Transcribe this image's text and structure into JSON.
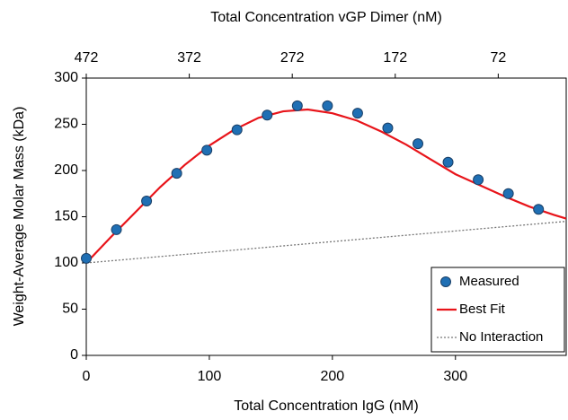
{
  "chart_data": {
    "type": "scatter",
    "x_label": "Total Concentration IgG (nM)",
    "y_label": "Weight-Average Molar Mass (kDa)",
    "x2_label": "Total Concentration vGP Dimer (nM)",
    "xlim": [
      0,
      390
    ],
    "xticks": [
      0,
      100,
      200,
      300
    ],
    "x2lim": [
      472,
      6
    ],
    "x2ticks": [
      472,
      372,
      272,
      172,
      72
    ],
    "ylim": [
      0,
      300
    ],
    "yticks": [
      0,
      50,
      100,
      150,
      200,
      250,
      300
    ],
    "legend": "lower right",
    "series": [
      {
        "name": "Measured",
        "color": "#1f6fb4",
        "style": "markers",
        "x": [
          0,
          24.5,
          49,
          73.5,
          98,
          122.5,
          147,
          171.5,
          196,
          220.5,
          245,
          269.5,
          294,
          318.5,
          343,
          367.5
        ],
        "values": [
          105,
          136,
          167,
          197,
          222,
          244,
          260,
          270,
          270,
          262,
          246,
          229,
          209,
          190,
          175,
          158
        ]
      },
      {
        "name": "Best Fit",
        "color": "#e8141a",
        "style": "solid",
        "x": [
          0,
          20,
          40,
          60,
          80,
          100,
          120,
          140,
          160,
          180,
          200,
          220,
          240,
          260,
          280,
          300,
          320,
          340,
          360,
          380,
          390
        ],
        "values": [
          100,
          128,
          155,
          182,
          206,
          227,
          244,
          257,
          264,
          266,
          262,
          254,
          242,
          228,
          212,
          196,
          184,
          172,
          161,
          152,
          148
        ]
      },
      {
        "name": "No Interaction",
        "color": "#777777",
        "style": "dotted",
        "x": [
          0,
          390
        ],
        "values": [
          100,
          145
        ]
      }
    ]
  }
}
